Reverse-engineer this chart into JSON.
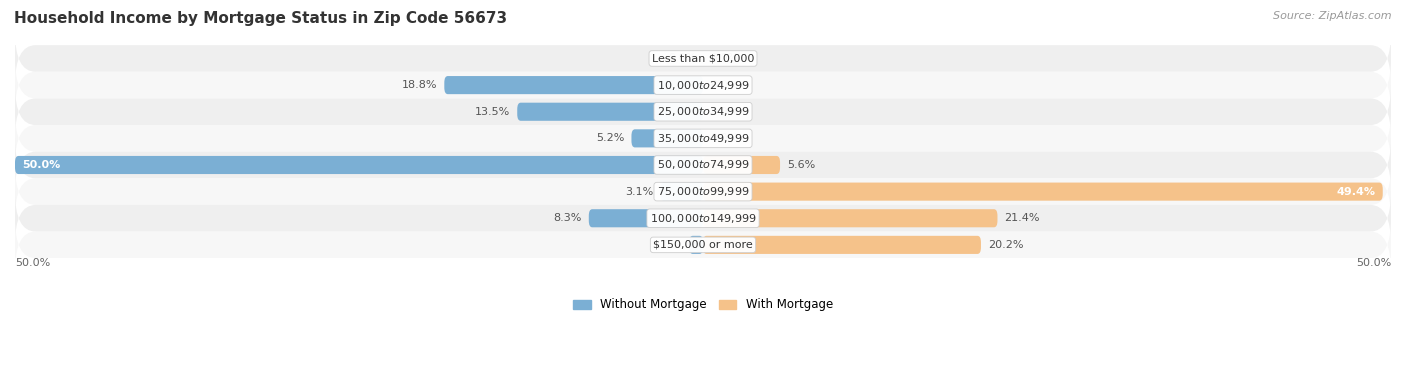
{
  "title": "Household Income by Mortgage Status in Zip Code 56673",
  "source": "Source: ZipAtlas.com",
  "categories": [
    "Less than $10,000",
    "$10,000 to $24,999",
    "$25,000 to $34,999",
    "$35,000 to $49,999",
    "$50,000 to $74,999",
    "$75,000 to $99,999",
    "$100,000 to $149,999",
    "$150,000 or more"
  ],
  "without_mortgage": [
    0.0,
    18.8,
    13.5,
    5.2,
    50.0,
    3.1,
    8.3,
    1.0
  ],
  "with_mortgage": [
    0.0,
    0.0,
    0.0,
    0.0,
    5.6,
    49.4,
    21.4,
    20.2
  ],
  "color_without": "#7BAFD4",
  "color_with": "#F5C28A",
  "color_without_dark": "#5A8FBA",
  "color_with_dark": "#E0A060",
  "bg_odd": "#EFEFEF",
  "bg_even": "#F7F7F7",
  "xlim_left": -50,
  "xlim_right": 50,
  "legend_without": "Without Mortgage",
  "legend_with": "With Mortgage",
  "title_fontsize": 11,
  "source_fontsize": 8,
  "bar_label_fontsize": 8,
  "category_fontsize": 8
}
